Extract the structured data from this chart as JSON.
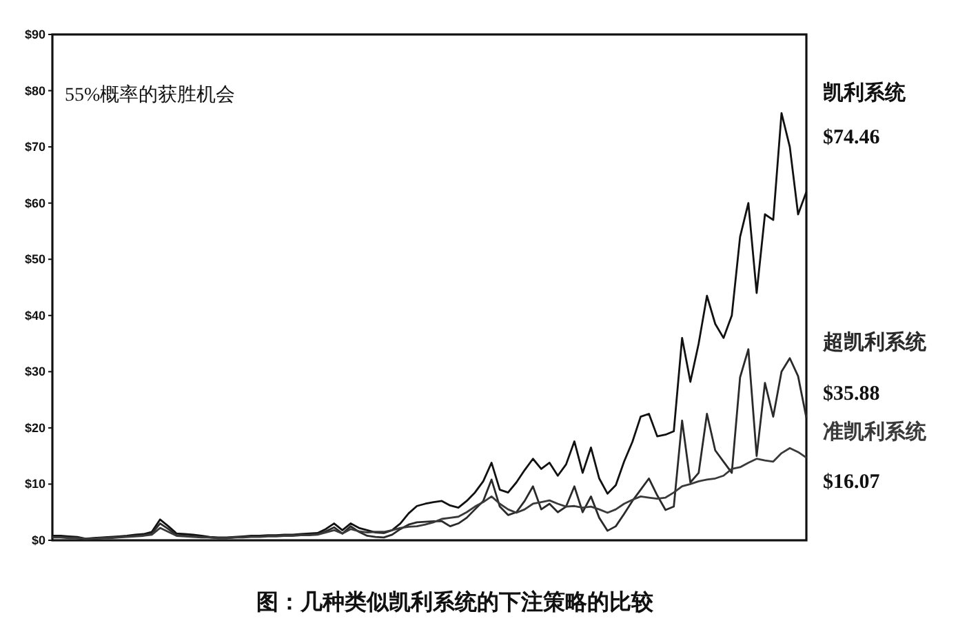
{
  "chart_data": {
    "type": "line",
    "title": "图：几种类似凯利系统的下注策略的比较",
    "annotations": [
      "55%概率的获胜机会",
      "$74.46",
      "$35.88",
      "$16.07"
    ],
    "categories": [
      null,
      null,
      null,
      null,
      null,
      null,
      null,
      null,
      null,
      null,
      null,
      null,
      null,
      null,
      null,
      null,
      null,
      null,
      null,
      null,
      null,
      null,
      null,
      null,
      null,
      null,
      null,
      null,
      null,
      null,
      null,
      null,
      null,
      null,
      null,
      null,
      null,
      null,
      null,
      null,
      null,
      null,
      null,
      null,
      null,
      null,
      null,
      null,
      null,
      null,
      null,
      null,
      null,
      null,
      null,
      null,
      null,
      null,
      null,
      null,
      null,
      null,
      null,
      null,
      null,
      null,
      null,
      null,
      null,
      null,
      null,
      null,
      null,
      null,
      null,
      null,
      null,
      null,
      null,
      null,
      null,
      null,
      null,
      null,
      null,
      null,
      null,
      null,
      null,
      null,
      null,
      null
    ],
    "series": [
      {
        "name": "凯利系统",
        "color": "#111111",
        "values": [
          0.8,
          0.8,
          0.7,
          0.6,
          0.3,
          0.4,
          0.5,
          0.6,
          0.7,
          0.8,
          1.0,
          1.1,
          1.5,
          3.7,
          2.5,
          1.2,
          1.1,
          1.0,
          0.8,
          0.6,
          0.5,
          0.5,
          0.6,
          0.7,
          0.8,
          0.8,
          0.9,
          0.9,
          1.0,
          1.0,
          1.1,
          1.2,
          1.3,
          2.0,
          3.0,
          1.8,
          3.0,
          2.2,
          1.8,
          1.4,
          1.3,
          1.8,
          3.0,
          4.8,
          6.1,
          6.5,
          6.8,
          7.0,
          6.2,
          5.8,
          7.0,
          8.5,
          10.5,
          13.8,
          9.0,
          8.5,
          10.3,
          12.5,
          14.5,
          12.7,
          13.8,
          11.5,
          13.5,
          17.6,
          12.0,
          16.5,
          11.0,
          8.3,
          9.8,
          14.0,
          17.5,
          22.0,
          22.5,
          18.5,
          18.8,
          19.4,
          36.0,
          28.2,
          35.0,
          43.5,
          38.5,
          36.0,
          40.0,
          54.0,
          60.0,
          44.0,
          58.0,
          57.0,
          76.0,
          70.0,
          58.0,
          62.0
        ]
      },
      {
        "name": "超凯利系统",
        "color": "#2a2a2a",
        "values": [
          0.6,
          0.6,
          0.5,
          0.4,
          0.2,
          0.3,
          0.4,
          0.5,
          0.6,
          0.7,
          0.8,
          0.9,
          1.2,
          3.0,
          2.0,
          0.9,
          0.8,
          0.7,
          0.6,
          0.5,
          0.4,
          0.4,
          0.5,
          0.6,
          0.7,
          0.7,
          0.8,
          0.8,
          0.9,
          0.9,
          1.0,
          1.0,
          1.1,
          1.6,
          2.3,
          1.2,
          2.5,
          1.5,
          0.8,
          0.6,
          0.5,
          1.0,
          2.0,
          2.8,
          3.2,
          3.3,
          3.4,
          3.4,
          2.5,
          3.0,
          4.0,
          5.5,
          7.0,
          10.8,
          6.0,
          4.5,
          5.0,
          7.0,
          9.6,
          5.5,
          6.5,
          5.0,
          6.0,
          9.6,
          5.0,
          7.8,
          4.0,
          1.7,
          2.5,
          4.7,
          7.0,
          9.0,
          11.0,
          8.0,
          5.4,
          6.0,
          21.3,
          10.3,
          12.0,
          22.5,
          16.0,
          14.0,
          12.0,
          29.0,
          34.0,
          15.0,
          28.0,
          22.0,
          30.0,
          32.4,
          29.2,
          21.8
        ]
      },
      {
        "name": "准凯利系统",
        "color": "#3a3a3a",
        "values": [
          0.5,
          0.5,
          0.4,
          0.4,
          0.3,
          0.3,
          0.4,
          0.4,
          0.5,
          0.6,
          0.7,
          0.8,
          1.0,
          2.2,
          1.5,
          0.8,
          0.7,
          0.6,
          0.5,
          0.5,
          0.4,
          0.4,
          0.5,
          0.5,
          0.6,
          0.6,
          0.7,
          0.7,
          0.8,
          0.8,
          0.9,
          0.9,
          1.0,
          1.4,
          1.8,
          1.2,
          2.0,
          1.6,
          1.4,
          1.5,
          1.5,
          1.8,
          2.2,
          2.4,
          2.5,
          2.8,
          3.2,
          3.8,
          4.0,
          4.2,
          5.0,
          6.0,
          6.8,
          7.8,
          6.5,
          5.5,
          4.9,
          5.5,
          6.5,
          6.8,
          7.1,
          6.5,
          6.0,
          6.1,
          5.8,
          6.0,
          5.5,
          4.9,
          5.5,
          6.5,
          7.2,
          7.8,
          7.6,
          7.4,
          7.6,
          8.5,
          9.6,
          10.0,
          10.5,
          10.8,
          11.0,
          11.5,
          12.7,
          13.0,
          13.8,
          14.5,
          14.2,
          14.0,
          15.5,
          16.4,
          15.7,
          14.7
        ]
      }
    ],
    "ylim": [
      0,
      90
    ],
    "yticks": [
      {
        "value": 0,
        "label": "$0"
      },
      {
        "value": 10,
        "label": "$10"
      },
      {
        "value": 20,
        "label": "$20"
      },
      {
        "value": 30,
        "label": "$30"
      },
      {
        "value": 40,
        "label": "$40"
      },
      {
        "value": 50,
        "label": "$50"
      },
      {
        "value": 60,
        "label": "$60"
      },
      {
        "value": 70,
        "label": "$70"
      },
      {
        "value": 80,
        "label": "$80"
      },
      {
        "value": 90,
        "label": "$90"
      }
    ],
    "tick_labels": "y",
    "line_style": "solid"
  }
}
